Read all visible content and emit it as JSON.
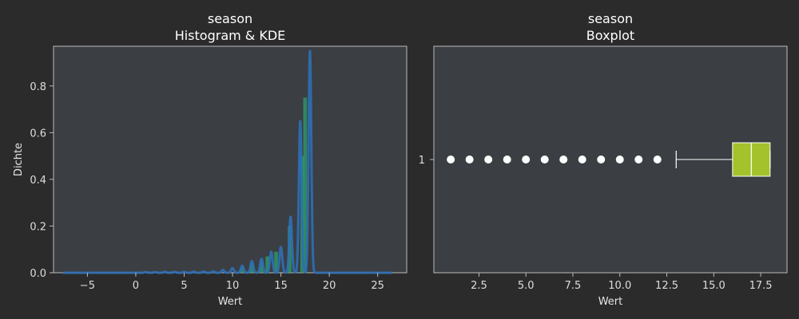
{
  "colors": {
    "background": "#2b2b2b",
    "plot_bg": "#3b3e42",
    "axis": "#bbbbbb",
    "hist": "#2ca26a",
    "kde": "#2f6fb5",
    "box_fill": "#a4c22b",
    "points": "#ffffff"
  },
  "chart_data": [
    {
      "type": "histogram+kde",
      "title": "season",
      "subtitle": "Histogram & KDE",
      "xlabel": "Wert",
      "ylabel": "Dichte",
      "xlim": [
        -8.5,
        28
      ],
      "ylim": [
        0,
        0.97
      ],
      "xticks": [
        -5,
        0,
        5,
        10,
        15,
        20,
        25
      ],
      "xtick_labels": [
        "−5",
        "0",
        "5",
        "10",
        "15",
        "20",
        "25"
      ],
      "yticks": [
        0.0,
        0.2,
        0.4,
        0.6,
        0.8
      ],
      "ytick_labels": [
        "0.0",
        "0.2",
        "0.4",
        "0.6",
        "0.8"
      ],
      "grid": false,
      "kde_range": [
        -7.5,
        26.5
      ],
      "kde_bandwidth": 0.14,
      "hist_bins": [
        {
          "x": 11.0,
          "density": 0.02
        },
        {
          "x": 12.0,
          "density": 0.04
        },
        {
          "x": 13.0,
          "density": 0.05
        },
        {
          "x": 13.6,
          "density": 0.07
        },
        {
          "x": 14.5,
          "density": 0.09
        },
        {
          "x": 15.9,
          "density": 0.2
        },
        {
          "x": 17.2,
          "density": 0.5
        },
        {
          "x": 17.5,
          "density": 0.75
        }
      ],
      "kde_peaks": [
        {
          "x": 1.0,
          "density": 0.003
        },
        {
          "x": 2.0,
          "density": 0.003
        },
        {
          "x": 3.0,
          "density": 0.004
        },
        {
          "x": 4.0,
          "density": 0.004
        },
        {
          "x": 5.0,
          "density": 0.004
        },
        {
          "x": 6.0,
          "density": 0.005
        },
        {
          "x": 7.0,
          "density": 0.005
        },
        {
          "x": 8.0,
          "density": 0.006
        },
        {
          "x": 9.0,
          "density": 0.012
        },
        {
          "x": 10.0,
          "density": 0.02
        },
        {
          "x": 11.0,
          "density": 0.03
        },
        {
          "x": 12.0,
          "density": 0.05
        },
        {
          "x": 13.0,
          "density": 0.06
        },
        {
          "x": 14.0,
          "density": 0.09
        },
        {
          "x": 15.0,
          "density": 0.11
        },
        {
          "x": 16.0,
          "density": 0.24
        },
        {
          "x": 17.0,
          "density": 0.65
        },
        {
          "x": 18.0,
          "density": 0.95
        }
      ]
    },
    {
      "type": "boxplot",
      "title": "season",
      "subtitle": "Boxplot",
      "xlabel": "Wert",
      "ylabel": "",
      "category": "1",
      "xlim": [
        0.1,
        18.9
      ],
      "xticks": [
        2.5,
        5.0,
        7.5,
        10.0,
        12.5,
        15.0,
        17.5
      ],
      "xtick_labels": [
        "2.5",
        "5.0",
        "7.5",
        "10.0",
        "12.5",
        "15.0",
        "17.5"
      ],
      "grid": false,
      "whisker_low": 13,
      "q1": 16,
      "median": 17,
      "q3": 18,
      "whisker_high": 18,
      "outliers": [
        1,
        2,
        3,
        4,
        5,
        6,
        7,
        8,
        9,
        10,
        11,
        12
      ]
    }
  ]
}
